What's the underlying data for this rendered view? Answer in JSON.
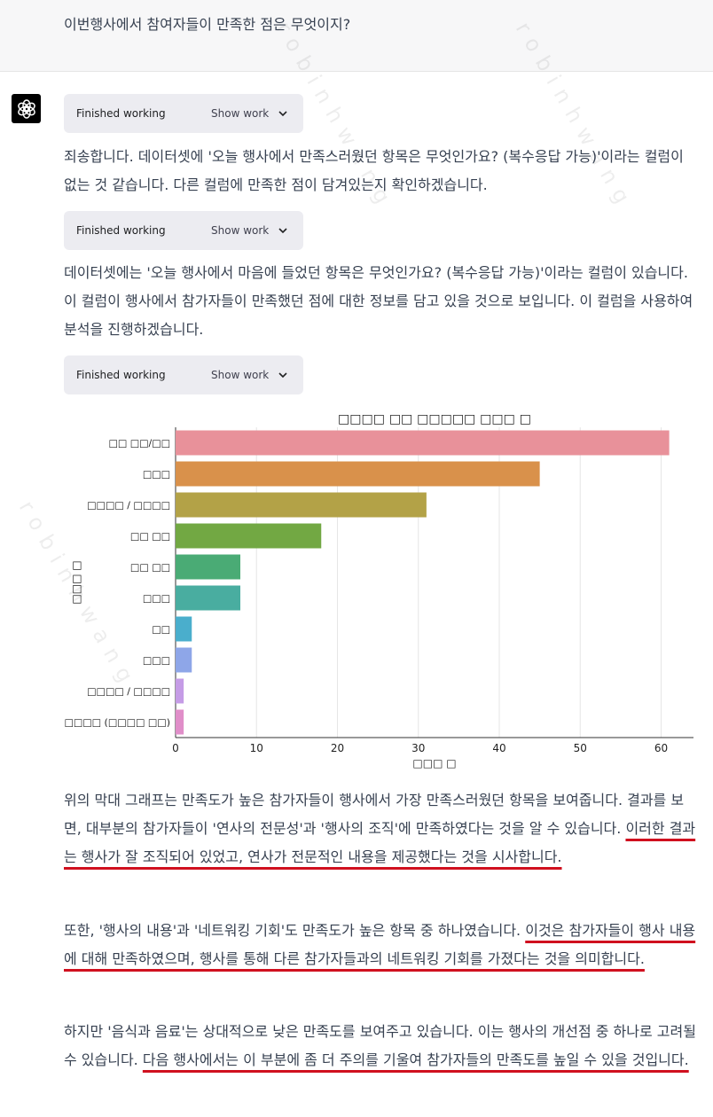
{
  "user": {
    "question": "이번행사에서 참여자들이 만족한 점은 무엇이지?"
  },
  "assistant": {
    "work_blocks": [
      {
        "status": "Finished working",
        "toggle": "Show work"
      },
      {
        "status": "Finished working",
        "toggle": "Show work"
      },
      {
        "status": "Finished working",
        "toggle": "Show work"
      }
    ],
    "para1": "죄송합니다. 데이터셋에 '오늘 행사에서 만족스러웠던 항목은 무엇인가요? (복수응답 가능)'이라는 컬럼이 없는 것 같습니다. 다른 컬럼에 만족한 점이 담겨있는지 확인하겠습니다.",
    "para2": "데이터셋에는 '오늘 행사에서 마음에 들었던 항목은 무엇인가요? (복수응답 가능)'이라는 컬럼이 있습니다. 이 컬럼이 행사에서 참가자들이 만족했던 점에 대한 정보를 담고 있을 것으로 보입니다. 이 컬럼을 사용하여 분석을 진행하겠습니다.",
    "para3a": "위의 막대 그래프는 만족도가 높은 참가자들이 행사에서 가장 만족스러웠던 항목을 보여줍니다. 결과를 보면, 대부분의 참가자들이 '연사의 전문성'과 '행사의 조직'에 만족하였다는 것을 알 수 있습니다. ",
    "para3b": "이러한 결과는 행사가 잘 조직되어 있었고, 연사가 전문적인 내용을 제공했다는 것을 시사합니다.",
    "para4a": "또한, '행사의 내용'과 '네트워킹 기회'도 만족도가 높은 항목 중 하나였습니다. ",
    "para4b": "이것은 참가자들이 행사 내용에 대해 만족하였으며, 행사를 통해 다른 참가자들과의 네트워킹 기회를 가졌다는 것을 의미합니다.",
    "para5a": "하지만 '음식과 음료'는 상대적으로 낮은 만족도를 보여주고 있습니다. 이는 행사의 개선점 중 하나로 고려될 수 있습니다. ",
    "para5b": "다음 행사에서는 이 부분에 좀 더 주의를 기울여 참가자들의 만족도를 높일 수 있을 것입니다."
  },
  "chart_data": {
    "type": "bar",
    "orientation": "horizontal",
    "title": "□□□□ □□ □□□□□ □□□ □",
    "xlabel": "□□□ □",
    "ylabel": "□□□ □",
    "categories": [
      "□□ □□/□□",
      "□□□",
      "□□□□ / □□□□",
      "□□ □□",
      "□□ □□",
      "□□□",
      "□□",
      "□□□",
      "□□□□ / □□□□",
      "□□□□ (□□□□ □□)"
    ],
    "values": [
      61,
      45,
      31,
      18,
      8,
      8,
      2,
      2,
      1,
      1
    ],
    "colors": [
      "#e8919a",
      "#d9914b",
      "#b3a247",
      "#72a843",
      "#4aab75",
      "#49ada0",
      "#4aaecc",
      "#8ea6e8",
      "#c59ce6",
      "#e08ec9"
    ],
    "xticks": [
      0,
      10,
      20,
      30,
      40,
      50,
      60
    ],
    "xlim": [
      0,
      64
    ],
    "grid": "x"
  },
  "watermark": "robinhwang"
}
